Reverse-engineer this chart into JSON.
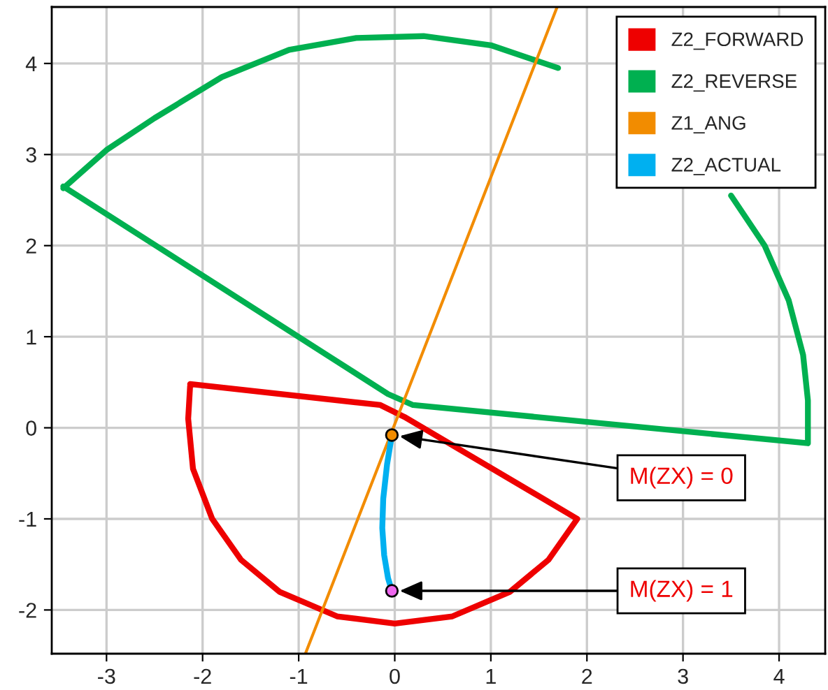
{
  "chart_data": {
    "type": "line",
    "xlim": [
      -3.57,
      4.48
    ],
    "ylim": [
      -2.48,
      4.62
    ],
    "xticks": [
      -3,
      -2,
      -1,
      0,
      1,
      2,
      3,
      4
    ],
    "yticks": [
      -2,
      -1,
      0,
      1,
      2,
      3,
      4
    ],
    "grid": true,
    "legend": "top right",
    "line_style": "solid",
    "series": [
      {
        "name": "Z2_FORWARD",
        "color": "#ee0000",
        "x": [
          -2.13,
          -0.15,
          0.1,
          1.9,
          1.6,
          1.2,
          0.6,
          0.0,
          -0.6,
          -1.2,
          -1.6,
          -1.9,
          -2.1,
          -2.15,
          -2.13
        ],
        "values": [
          0.48,
          0.25,
          0.12,
          -1.0,
          -1.45,
          -1.8,
          -2.07,
          -2.15,
          -2.07,
          -1.8,
          -1.45,
          -1.0,
          -0.45,
          0.1,
          0.46
        ]
      },
      {
        "name": "Z2_REVERSE",
        "color": "#00b050",
        "x": [
          -3.45,
          -0.07,
          0.19,
          4.3,
          4.3,
          4.25,
          4.1,
          3.85,
          3.5,
          3.0,
          2.4,
          1.7,
          1.0,
          0.3,
          -0.4,
          -1.1,
          -1.8,
          -2.5,
          -3.0,
          -3.45
        ],
        "values": [
          2.65,
          0.37,
          0.25,
          -0.17,
          0.3,
          0.8,
          1.4,
          2.0,
          2.55,
          null,
          null,
          3.95,
          4.2,
          4.3,
          4.28,
          4.15,
          3.85,
          3.4,
          3.05,
          2.63
        ]
      },
      {
        "name": "Z1_ANG",
        "color": "#f28c00",
        "x": [
          -0.93,
          1.69
        ],
        "values": [
          -2.48,
          4.62
        ]
      },
      {
        "name": "Z2_ACTUAL",
        "color": "#00b0f0",
        "x": [
          -0.03,
          -0.08,
          -0.12,
          -0.13,
          -0.11,
          -0.07,
          -0.03
        ],
        "values": [
          -0.08,
          -0.4,
          -0.78,
          -1.1,
          -1.4,
          -1.65,
          -1.79
        ]
      },
      {
        "type": "scatter",
        "marker": "circle",
        "x": [
          -0.03,
          -0.03
        ],
        "values": [
          -0.08,
          -1.79
        ],
        "colors": [
          "#f28c00",
          "#ee66ee"
        ]
      }
    ],
    "annotations": [
      {
        "text": "M(ZX) = 0",
        "x": -0.03,
        "y": -0.08
      },
      {
        "text": "M(ZX) = 1",
        "x": -0.03,
        "y": -1.79
      }
    ]
  }
}
